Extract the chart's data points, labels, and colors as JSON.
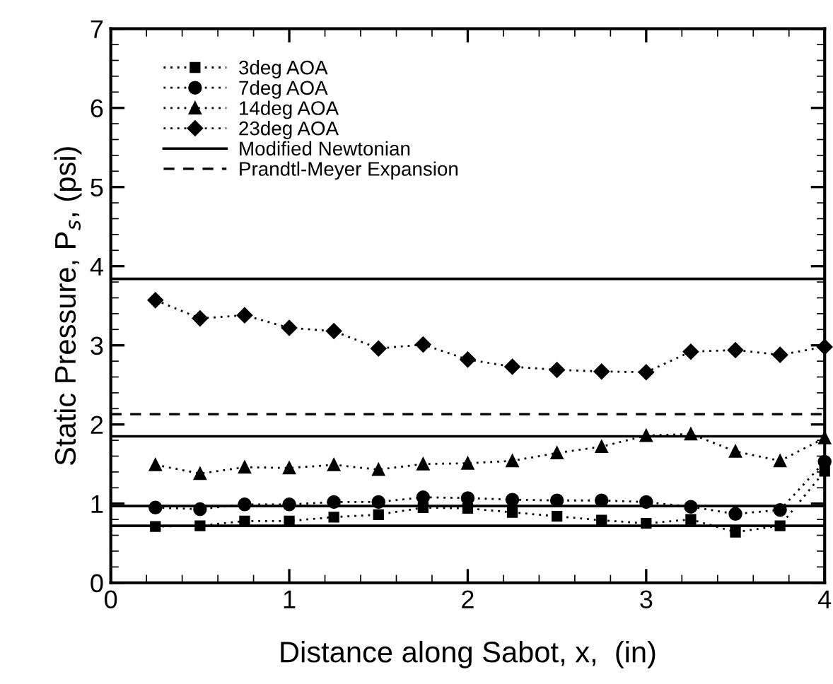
{
  "chart_data": {
    "type": "line",
    "xlabel": "Distance along Sabot, x,  (in)",
    "ylabel": "Static Pressure, P$_{s}$, (psi)",
    "xlim": [
      0,
      4
    ],
    "ylim": [
      0,
      7
    ],
    "xticks": [
      0,
      1,
      2,
      3,
      4
    ],
    "yticks": [
      0,
      1,
      2,
      3,
      4,
      5,
      6,
      7
    ],
    "grid": false,
    "legend": "top left",
    "x": [
      0.25,
      0.5,
      0.75,
      1.0,
      1.25,
      1.5,
      1.75,
      2.0,
      2.25,
      2.5,
      2.75,
      3.0,
      3.25,
      3.5,
      3.75,
      4.0
    ],
    "series": [
      {
        "name": "3deg AOA",
        "color": "#000000",
        "marker": "square",
        "line_style": "dotted",
        "values": [
          0.71,
          0.72,
          0.78,
          0.78,
          0.83,
          0.86,
          0.95,
          0.94,
          0.89,
          0.84,
          0.79,
          0.75,
          0.8,
          0.64,
          0.72,
          1.41
        ]
      },
      {
        "name": "7deg AOA",
        "color": "#000000",
        "marker": "circle",
        "line_style": "dotted",
        "values": [
          0.95,
          0.93,
          0.99,
          0.99,
          1.02,
          1.02,
          1.08,
          1.07,
          1.05,
          1.04,
          1.04,
          1.02,
          0.96,
          0.87,
          0.92,
          1.53
        ]
      },
      {
        "name": "14deg AOA",
        "color": "#000000",
        "marker": "triangle",
        "line_style": "dotted",
        "values": [
          1.49,
          1.38,
          1.46,
          1.45,
          1.49,
          1.43,
          1.5,
          1.51,
          1.54,
          1.64,
          1.72,
          1.86,
          1.88,
          1.66,
          1.54,
          1.83
        ]
      },
      {
        "name": "23deg AOA",
        "color": "#000000",
        "marker": "diamond",
        "line_style": "dotted",
        "values": [
          3.57,
          3.34,
          3.38,
          3.22,
          3.18,
          2.96,
          3.01,
          2.82,
          2.73,
          2.69,
          2.67,
          2.66,
          2.92,
          2.94,
          2.88,
          2.98
        ]
      },
      {
        "name": "Prandtl-Meyer Expansion",
        "color": "#000000",
        "marker": "none",
        "line_style": "dashed",
        "x": [
          0,
          4
        ],
        "values": [
          2.13,
          2.13
        ]
      }
    ],
    "ref_lines": [
      {
        "axis": "y",
        "value": 3.84,
        "label": "Modified Newtonian",
        "color": "#000000",
        "line_style": "solid"
      },
      {
        "axis": "y",
        "value": 1.85,
        "color": "#000000",
        "line_style": "solid"
      },
      {
        "axis": "y",
        "value": 0.97,
        "color": "#000000",
        "line_style": "solid"
      },
      {
        "axis": "y",
        "value": 0.72,
        "color": "#000000",
        "line_style": "solid"
      }
    ]
  }
}
